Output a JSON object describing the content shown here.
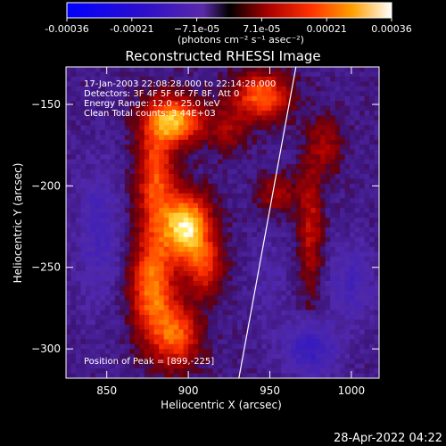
{
  "colorbar": {
    "ticks": [
      "-0.00036",
      "-0.00021",
      "−7.1e-05",
      "7.1e-05",
      "0.00021",
      "0.00036"
    ],
    "unit_label": "(photons cm⁻² s⁻¹ asec⁻²)"
  },
  "chart_data": {
    "type": "heatmap",
    "title": "Reconstructed RHESSI Image",
    "xlabel": "Heliocentric X (arcsec)",
    "ylabel": "Heliocentric Y (arcsec)",
    "xlim": [
      825,
      1017
    ],
    "ylim": [
      -318,
      -127
    ],
    "xticks": [
      850,
      900,
      950,
      1000
    ],
    "yticks": [
      -150,
      -200,
      -250,
      -300
    ],
    "colorbar_range": [
      -0.00036,
      0.00036
    ],
    "info_lines": [
      "17-Jan-2003 22:08:28.000 to 22:14:28.000",
      "Detectors: 3F 4F 5F 6F 7F 8F, Att 0",
      "Energy Range: 12.0 - 25.0 keV",
      "Clean     Total counts: 3.44E+03"
    ],
    "peak_label": "Position of Peak = [899,-225]",
    "peak_position": [
      899,
      -225
    ],
    "limb_line": [
      [
        931,
        -318
      ],
      [
        966,
        -127
      ]
    ],
    "sources": [
      {
        "x": 899,
        "y": -225,
        "amp": 0.00036,
        "sx": 10,
        "sy": 14
      },
      {
        "x": 892,
        "y": -160,
        "amp": 0.0003,
        "sx": 12,
        "sy": 10
      },
      {
        "x": 880,
        "y": -195,
        "amp": 0.00022,
        "sx": 8,
        "sy": 25
      },
      {
        "x": 878,
        "y": -262,
        "amp": 0.00026,
        "sx": 9,
        "sy": 22
      },
      {
        "x": 893,
        "y": -292,
        "amp": 0.00022,
        "sx": 10,
        "sy": 14
      },
      {
        "x": 910,
        "y": -250,
        "amp": 0.00018,
        "sx": 8,
        "sy": 12
      },
      {
        "x": 945,
        "y": -145,
        "amp": 0.00024,
        "sx": 12,
        "sy": 10
      },
      {
        "x": 955,
        "y": -205,
        "amp": 0.00012,
        "sx": 8,
        "sy": 8
      },
      {
        "x": 975,
        "y": -225,
        "amp": 0.00014,
        "sx": 5,
        "sy": 30
      },
      {
        "x": 985,
        "y": -175,
        "amp": 0.0001,
        "sx": 7,
        "sy": 12
      },
      {
        "x": 925,
        "y": -165,
        "amp": 0.0001,
        "sx": 8,
        "sy": 10
      },
      {
        "x": 845,
        "y": -230,
        "amp": -8e-05,
        "sx": 10,
        "sy": 30
      },
      {
        "x": 975,
        "y": -300,
        "amp": -0.00012,
        "sx": 12,
        "sy": 12
      },
      {
        "x": 1000,
        "y": -260,
        "amp": -8e-05,
        "sx": 10,
        "sy": 18
      },
      {
        "x": 950,
        "y": -260,
        "amp": -4e-05,
        "sx": 8,
        "sy": 20
      }
    ],
    "baseline": -3e-05
  },
  "timestamp": "28-Apr-2022 04:22"
}
